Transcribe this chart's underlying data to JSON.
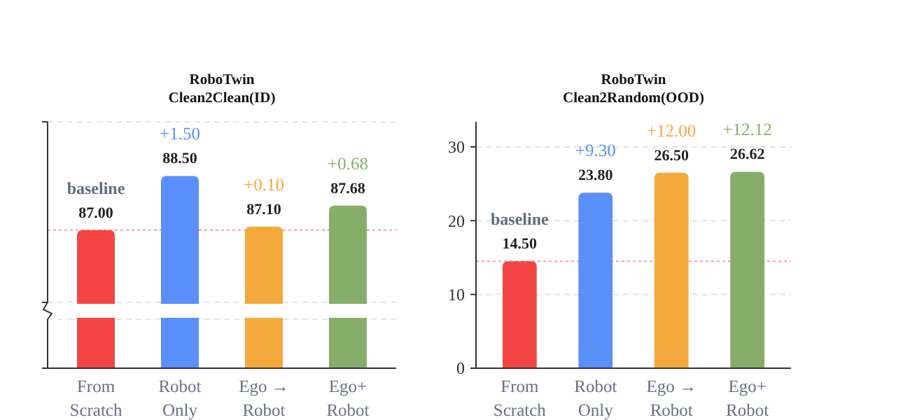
{
  "chart_data": [
    {
      "type": "bar",
      "title": "RoboTwin\nClean2Clean(ID)",
      "categories": [
        "From\nScratch",
        "Robot\nOnly",
        "Ego →\nRobot",
        "Ego+\nRobot"
      ],
      "values": [
        87.0,
        88.5,
        87.1,
        87.68
      ],
      "colors": [
        "#f44545",
        "#5b8ff9",
        "#f4a93c",
        "#87ad6a"
      ],
      "ylim": [
        85,
        90
      ],
      "yticks": [
        {
          "value": 85,
          "label": null
        },
        {
          "value": 90,
          "label": null
        }
      ],
      "grid": "y",
      "tick_labels": "x",
      "value_labels": [
        "87.00",
        "88.50",
        "87.10",
        "87.68"
      ],
      "ref_lines": [
        {
          "axis": "y",
          "value": 87.0,
          "color": "#f4a0a0",
          "line_style": "dotted"
        }
      ],
      "annotations": [
        {
          "text": "baseline",
          "x": "From\nScratch",
          "y": 87.0
        },
        {
          "text": "+1.50",
          "x": "Robot\nOnly",
          "y": 88.5
        },
        {
          "text": "+0.10",
          "x": "Ego →\nRobot",
          "y": 87.1
        },
        {
          "text": "+0.68",
          "x": "Ego+\nRobot",
          "y": 87.68
        }
      ]
    },
    {
      "type": "bar",
      "title": "RoboTwin\nClean2Random(OOD)",
      "categories": [
        "From\nScratch",
        "Robot\nOnly",
        "Ego →\nRobot",
        "Ego+\nRobot"
      ],
      "values": [
        14.5,
        23.8,
        26.5,
        26.62
      ],
      "colors": [
        "#f44545",
        "#5b8ff9",
        "#f4a93c",
        "#87ad6a"
      ],
      "ylim": [
        0,
        33.4
      ],
      "yticks": [
        0,
        10,
        20,
        30
      ],
      "grid": "y",
      "value_labels": [
        "14.50",
        "23.80",
        "26.50",
        "26.62"
      ],
      "ref_lines": [
        {
          "axis": "y",
          "value": 14.5,
          "color": "#f4a0a0",
          "line_style": "dotted"
        }
      ],
      "annotations": [
        {
          "text": "baseline",
          "x": "From\nScratch",
          "y": 14.5
        },
        {
          "text": "+9.30",
          "x": "Robot\nOnly",
          "y": 23.8
        },
        {
          "text": "+12.00",
          "x": "Ego →\nRobot",
          "y": 26.5
        },
        {
          "text": "+12.12",
          "x": "Ego+\nRobot",
          "y": 26.62
        }
      ]
    }
  ]
}
